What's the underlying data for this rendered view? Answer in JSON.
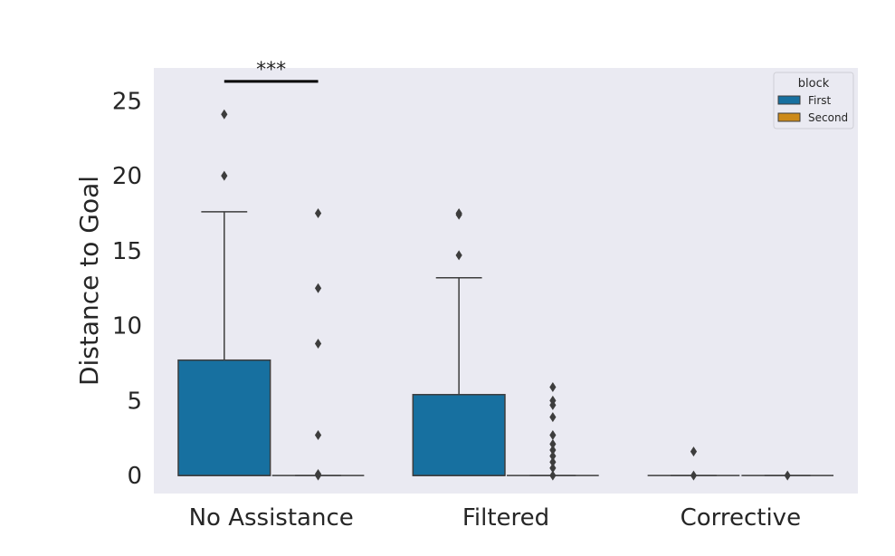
{
  "chart_data": {
    "type": "box",
    "ylabel": "Distance to Goal",
    "xlabel": "",
    "ylim": [
      -1.2,
      27.2
    ],
    "yticks": [
      0,
      5,
      10,
      15,
      20,
      25
    ],
    "grid": false,
    "background": "#eaeaf2",
    "categories": [
      "No Assistance",
      "Filtered",
      "Corrective"
    ],
    "legend": {
      "title": "block",
      "placement": "top-right"
    },
    "series": [
      {
        "name": "First",
        "color": "#1770a0",
        "boxes": [
          {
            "q1": 0,
            "median": 0,
            "q3": 7.7,
            "whisker_low": 0,
            "whisker_high": 17.6,
            "outliers": [
              20,
              24.1
            ]
          },
          {
            "q1": 0,
            "median": 0,
            "q3": 5.4,
            "whisker_low": 0,
            "whisker_high": 13.2,
            "outliers": [
              14.7,
              17.4,
              17.5
            ]
          },
          {
            "q1": 0,
            "median": 0,
            "q3": 0,
            "whisker_low": 0,
            "whisker_high": 0,
            "outliers": [
              0,
              1.6
            ]
          }
        ]
      },
      {
        "name": "Second",
        "color": "#cc8a1a",
        "boxes": [
          {
            "q1": 0,
            "median": 0,
            "q3": 0,
            "whisker_low": 0,
            "whisker_high": 0,
            "outliers": [
              0,
              0.1,
              2.7,
              8.8,
              12.5,
              17.5
            ]
          },
          {
            "q1": 0,
            "median": 0,
            "q3": 0,
            "whisker_low": 0,
            "whisker_high": 0,
            "outliers": [
              0,
              0.5,
              0.9,
              1.3,
              1.7,
              2.1,
              2.7,
              3.9,
              4.7,
              5.0,
              5.9
            ]
          },
          {
            "q1": 0,
            "median": 0,
            "q3": 0,
            "whisker_low": 0,
            "whisker_high": 0,
            "outliers": [
              0
            ]
          }
        ]
      }
    ],
    "annotations": [
      {
        "text": "***",
        "category": "No Assistance",
        "y": 26.3
      }
    ]
  }
}
